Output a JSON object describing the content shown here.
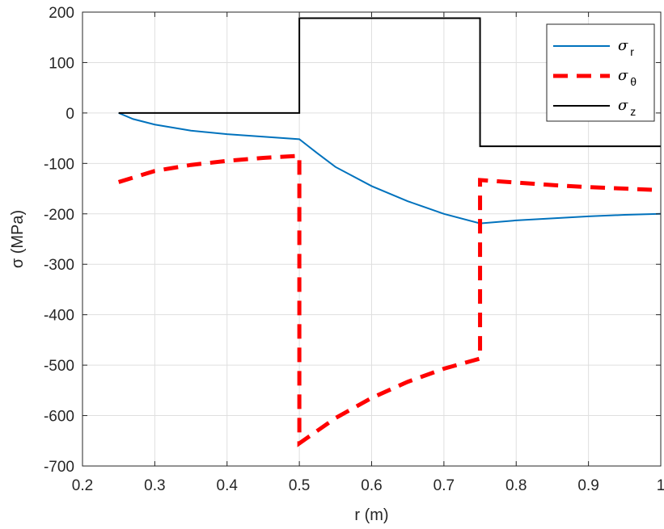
{
  "chart_data": {
    "type": "line",
    "xlabel": "r (m)",
    "ylabel": "σ (MPa)",
    "xlim": [
      0.2,
      1.0
    ],
    "ylim": [
      -700,
      200
    ],
    "xticks": [
      "0.2",
      "0.3",
      "0.4",
      "0.5",
      "0.6",
      "0.7",
      "0.8",
      "0.9",
      "1"
    ],
    "xtick_values": [
      0.2,
      0.3,
      0.4,
      0.5,
      0.6,
      0.7,
      0.8,
      0.9,
      1.0
    ],
    "yticks": [
      "200",
      "100",
      "0",
      "-100",
      "-200",
      "-300",
      "-400",
      "-500",
      "-600",
      "-700"
    ],
    "ytick_values": [
      200,
      100,
      0,
      -100,
      -200,
      -300,
      -400,
      -500,
      -600,
      -700
    ],
    "grid": true,
    "legend_position": "top-right",
    "series": [
      {
        "name": "σ_r",
        "label_main": "σ",
        "label_sub": "r",
        "color": "#0072BD",
        "style": "solid",
        "points": [
          [
            0.25,
            0
          ],
          [
            0.27,
            -12
          ],
          [
            0.3,
            -23
          ],
          [
            0.35,
            -35
          ],
          [
            0.4,
            -42
          ],
          [
            0.45,
            -47
          ],
          [
            0.5,
            -52
          ],
          [
            0.525,
            -80
          ],
          [
            0.55,
            -107
          ],
          [
            0.6,
            -145
          ],
          [
            0.65,
            -175
          ],
          [
            0.7,
            -200
          ],
          [
            0.75,
            -219
          ],
          [
            0.8,
            -213
          ],
          [
            0.85,
            -209
          ],
          [
            0.9,
            -205
          ],
          [
            0.95,
            -202
          ],
          [
            1.0,
            -200
          ]
        ]
      },
      {
        "name": "σ_θ",
        "label_main": "σ",
        "label_sub": "θ",
        "color": "#FF0000",
        "style": "dashed",
        "points": [
          [
            0.25,
            -137
          ],
          [
            0.3,
            -115
          ],
          [
            0.35,
            -103
          ],
          [
            0.4,
            -95
          ],
          [
            0.45,
            -89
          ],
          [
            0.5,
            -85
          ],
          [
            0.5,
            -655
          ],
          [
            0.55,
            -605
          ],
          [
            0.6,
            -565
          ],
          [
            0.65,
            -533
          ],
          [
            0.7,
            -507
          ],
          [
            0.75,
            -487
          ],
          [
            0.75,
            -133
          ],
          [
            0.8,
            -138
          ],
          [
            0.85,
            -143
          ],
          [
            0.9,
            -147
          ],
          [
            0.95,
            -150
          ],
          [
            1.0,
            -153
          ]
        ]
      },
      {
        "name": "σ_z",
        "label_main": "σ",
        "label_sub": "z",
        "color": "#000000",
        "style": "solid",
        "points": [
          [
            0.25,
            0
          ],
          [
            0.5,
            0
          ],
          [
            0.5,
            188
          ],
          [
            0.75,
            188
          ],
          [
            0.75,
            -66
          ],
          [
            1.0,
            -66
          ]
        ]
      }
    ]
  }
}
